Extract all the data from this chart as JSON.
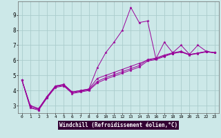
{
  "xlabel": "Windchill (Refroidissement éolien,°C)",
  "background_color": "#cce8e8",
  "grid_color": "#aacccc",
  "line_color": "#990099",
  "label_bg_color": "#330033",
  "label_fg_color": "#ffffff",
  "xlim": [
    -0.5,
    23.5
  ],
  "ylim": [
    2.5,
    9.9
  ],
  "xticks": [
    0,
    1,
    2,
    3,
    4,
    5,
    6,
    7,
    8,
    9,
    10,
    11,
    12,
    13,
    14,
    15,
    16,
    17,
    18,
    19,
    20,
    21,
    22,
    23
  ],
  "yticks": [
    3,
    4,
    5,
    6,
    7,
    8,
    9
  ],
  "series": [
    [
      4.7,
      3.0,
      2.8,
      3.6,
      4.3,
      4.4,
      3.9,
      4.0,
      4.1,
      5.5,
      6.5,
      7.2,
      8.0,
      9.5,
      8.5,
      8.6,
      6.1,
      7.2,
      6.5,
      7.0,
      6.4,
      7.0,
      6.6,
      6.5
    ],
    [
      4.7,
      3.0,
      2.8,
      3.6,
      4.3,
      4.4,
      3.9,
      4.0,
      4.1,
      4.8,
      5.0,
      5.2,
      5.4,
      5.6,
      5.8,
      6.0,
      6.1,
      6.3,
      6.45,
      6.55,
      6.38,
      6.48,
      6.58,
      6.5
    ],
    [
      4.7,
      2.9,
      2.75,
      3.55,
      4.25,
      4.35,
      3.85,
      3.95,
      4.05,
      4.6,
      4.85,
      5.05,
      5.25,
      5.45,
      5.65,
      6.05,
      6.15,
      6.35,
      6.5,
      6.6,
      6.38,
      6.48,
      6.58,
      6.5
    ],
    [
      4.7,
      2.85,
      2.7,
      3.5,
      4.2,
      4.3,
      3.8,
      3.9,
      4.0,
      4.5,
      4.75,
      4.95,
      5.15,
      5.35,
      5.55,
      5.95,
      6.05,
      6.25,
      6.45,
      6.55,
      6.35,
      6.45,
      6.55,
      6.5
    ]
  ]
}
